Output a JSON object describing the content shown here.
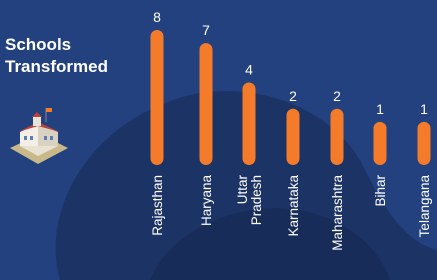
{
  "chart_data": {
    "type": "bar",
    "title": "Schools Transformed",
    "categories": [
      "Rajasthan",
      "Haryana",
      "Uttar Pradesh",
      "Karnataka",
      "Maharashtra",
      "Bihar",
      "Telangana"
    ],
    "values": [
      8,
      7,
      4,
      2,
      2,
      1,
      1
    ],
    "color": "#f47b2a"
  }
}
